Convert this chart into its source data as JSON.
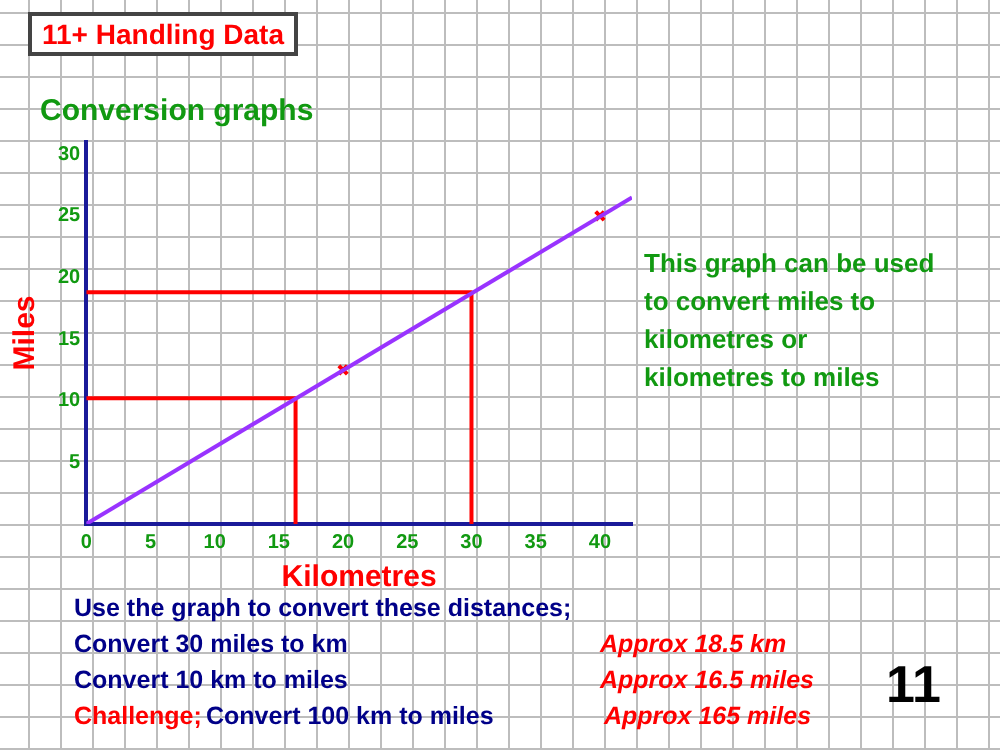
{
  "chart_data": {
    "type": "line",
    "title": "11+ Handling Data",
    "subtitle": "Conversion graphs",
    "xlabel": "Kilometres",
    "ylabel": "Miles",
    "xlim": [
      0,
      42.5
    ],
    "ylim": [
      0,
      31
    ],
    "xticks": [
      0,
      5,
      10,
      15,
      20,
      25,
      30,
      35,
      40
    ],
    "yticks": [
      5,
      10,
      15,
      20,
      25,
      30
    ],
    "grid": false,
    "legend": false,
    "series": [
      {
        "color": "#9933ff",
        "x": [
          0,
          42.5
        ],
        "values": [
          0,
          26.5
        ],
        "marker": "none"
      },
      {
        "type": "scatter",
        "color": "#ff0000",
        "x": [
          20,
          40
        ],
        "values": [
          12.5,
          25
        ],
        "marker": "cross"
      },
      {
        "type": "line",
        "color": "#ff0000",
        "x": [
          0,
          30,
          30
        ],
        "values": [
          18.8,
          18.8,
          0
        ],
        "marker": "none"
      },
      {
        "type": "line",
        "color": "#ff0000",
        "x": [
          0,
          16.3,
          16.3
        ],
        "values": [
          10.2,
          10.2,
          0
        ],
        "marker": "none"
      }
    ],
    "annotations": [
      "This graph can be used to convert miles to kilometres or kilometres to miles",
      "Use the graph to convert these distances;",
      "Convert 30 miles to km",
      "Convert 10 km to miles",
      "Challenge;",
      "Convert 100 km to miles",
      "Approx 18.5 km",
      "Approx 16.5 miles",
      "Approx 165 miles",
      "11"
    ]
  }
}
